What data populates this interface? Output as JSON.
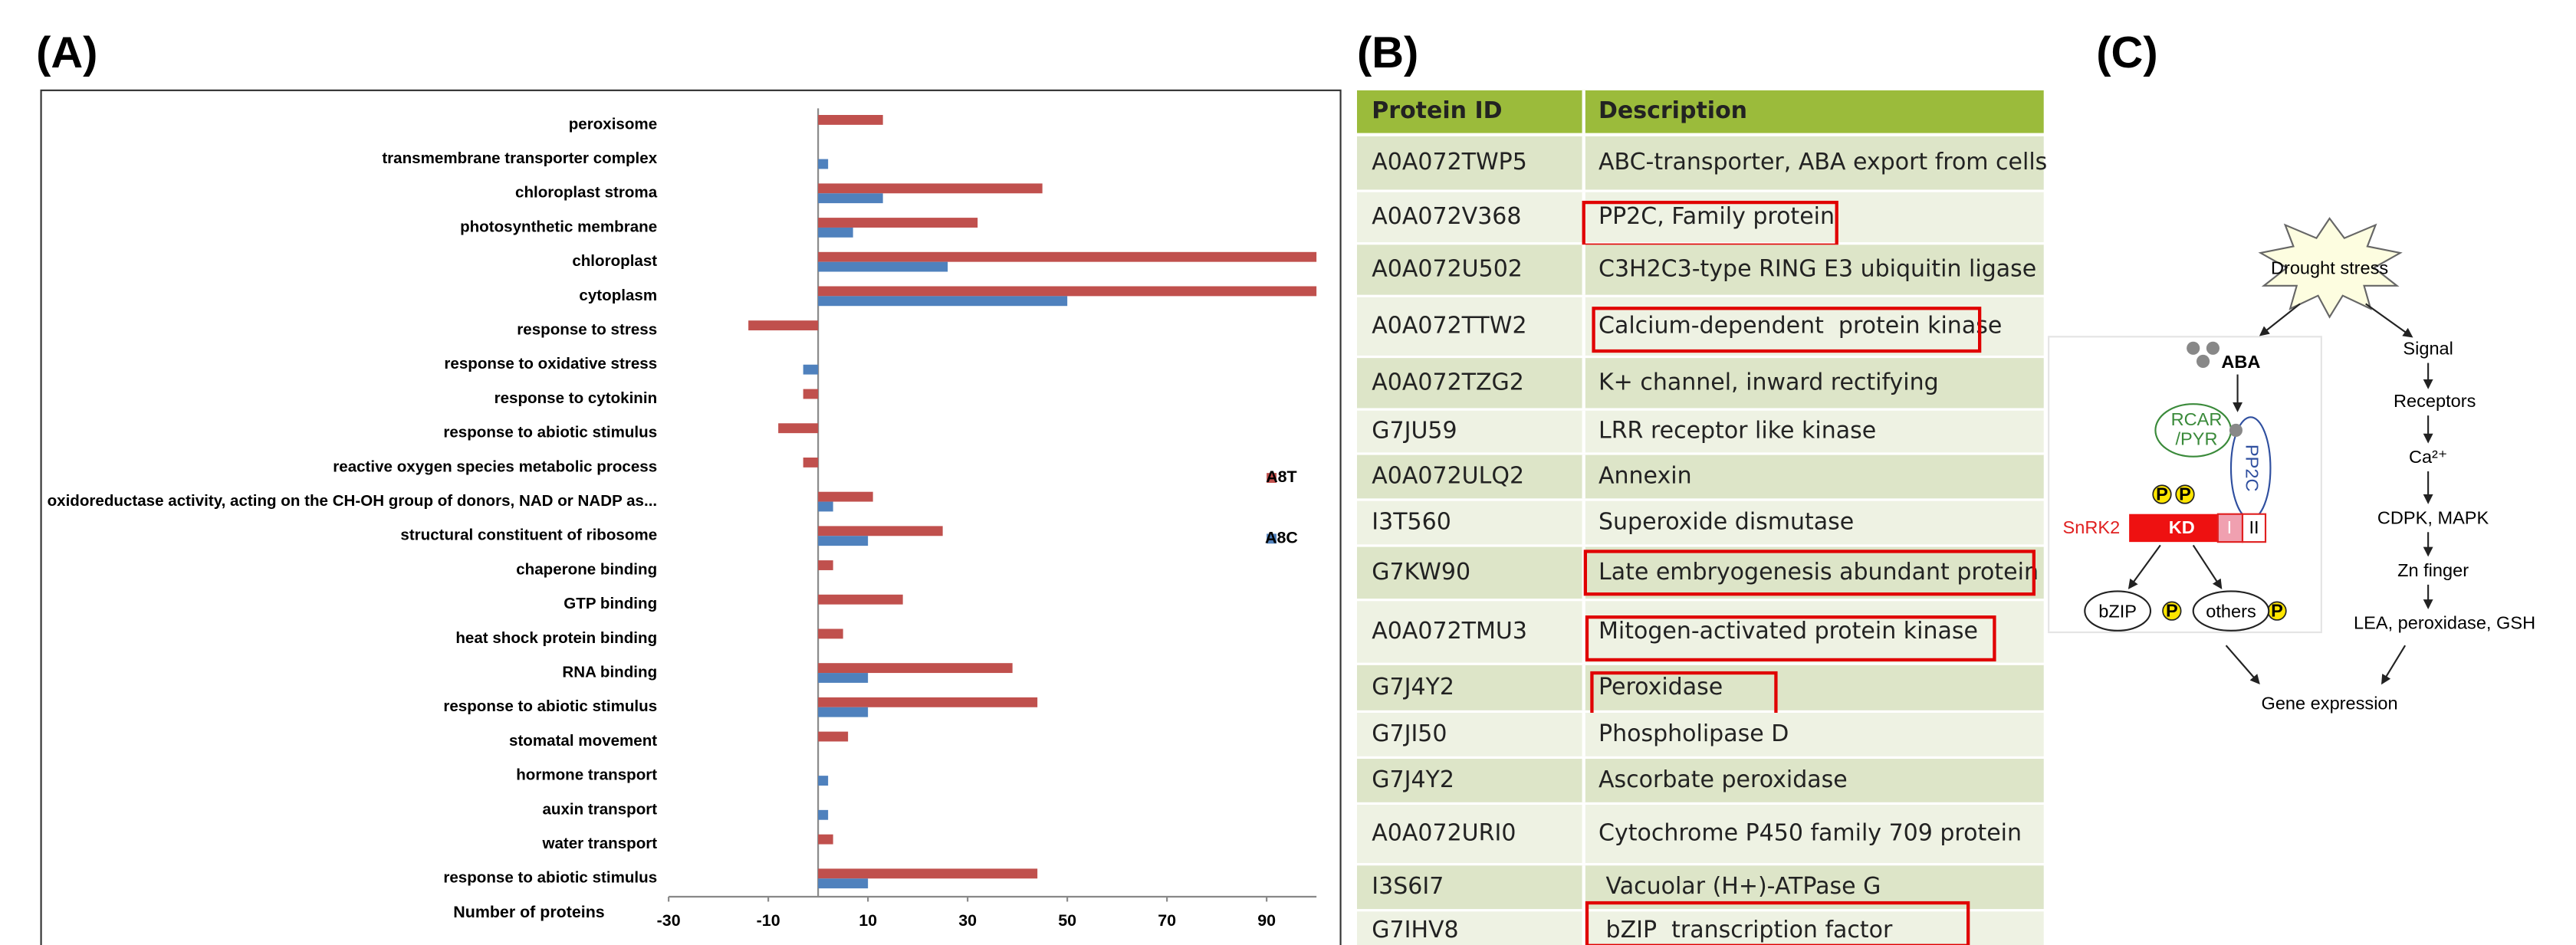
{
  "panels": [
    "(A)",
    "(B)",
    "(C)"
  ],
  "chart_data": {
    "type": "hbar",
    "x_label": "Number of proteins",
    "categories": [
      "peroxisome",
      "transmembrane transporter complex",
      "chloroplast stroma",
      "photosynthetic membrane",
      "chloroplast",
      "cytoplasm",
      "response to stress",
      "response to oxidative stress",
      "response to cytokinin",
      "response to abiotic stimulus",
      "reactive oxygen species metabolic process",
      "oxidoreductase activity, acting on the CH-OH group of donors, NAD or NADP as...",
      "structural constituent of ribosome",
      "chaperone binding",
      "GTP binding",
      "heat shock protein binding",
      "RNA binding",
      "response to abiotic stimulus",
      "stomatal movement",
      "hormone transport",
      "auxin transport",
      "water transport",
      "response to abiotic stimulus"
    ],
    "series": [
      {
        "name": "A8T",
        "color": "#c0504d",
        "values": [
          13,
          0,
          45,
          32,
          100,
          100,
          -14,
          0,
          -3,
          -8,
          -3,
          11,
          25,
          3,
          17,
          5,
          39,
          44,
          6,
          0,
          0,
          3,
          44
        ]
      },
      {
        "name": "A8C",
        "color": "#4f81bd",
        "values": [
          0,
          2,
          13,
          7,
          26,
          50,
          0,
          -3,
          0,
          0,
          0,
          3,
          10,
          0,
          0,
          0,
          10,
          10,
          0,
          2,
          2,
          0,
          10
        ]
      }
    ],
    "xlim": [
      -30,
      100
    ],
    "xticks": [
      -30,
      -10,
      10,
      30,
      50,
      70,
      90
    ],
    "legend": "right"
  },
  "table": {
    "header": [
      "Protein ID",
      "Description"
    ],
    "rows": [
      [
        "A0A072TWP5",
        "ABC-transporter, ABA export from cells"
      ],
      [
        "A0A072V368",
        "PP2C, Family protein"
      ],
      [
        "A0A072U502",
        "C3H2C3-type RING E3 ubiquitin ligase"
      ],
      [
        "A0A072TTW2",
        "Calcium-dependent  protein kinase"
      ],
      [
        "A0A072TZG2",
        "K+ channel, inward rectifying"
      ],
      [
        "G7JU59",
        "LRR receptor like kinase"
      ],
      [
        "A0A072ULQ2",
        "Annexin"
      ],
      [
        "I3T560",
        "Superoxide dismutase"
      ],
      [
        "G7KW90",
        "Late embryogenesis abundant protein"
      ],
      [
        "A0A072TMU3",
        "Mitogen-activated protein kinase"
      ],
      [
        "G7J4Y2",
        "Peroxidase"
      ],
      [
        "G7JI50",
        "Phospholipase D"
      ],
      [
        "G7J4Y2",
        "Ascorbate peroxidase"
      ],
      [
        "A0A072URI0",
        "Cytochrome P450 family 709 protein"
      ],
      [
        "I3S6I7",
        " Vacuolar (H+)-ATPase G"
      ],
      [
        "G7IHV8",
        " bZIP  transcription factor"
      ]
    ]
  },
  "diagram": {
    "drought": "Drought stress",
    "aba": "ABA",
    "rcar1": "RCAR",
    "rcar2": "/PYR",
    "pp2c": "PP2C",
    "snrk2": "SnRK2",
    "kd": "KD",
    "d1": "I",
    "d2": "II",
    "p": "P",
    "bzip": "bZIP",
    "others": "others",
    "signal": "Signal",
    "receptors": "Receptors",
    "ca": "Ca²⁺",
    "cdpk": "CDPK, MAPK",
    "zn": "Zn finger",
    "lea": "LEA, peroxidase, GSH",
    "gene": "Gene expression"
  }
}
